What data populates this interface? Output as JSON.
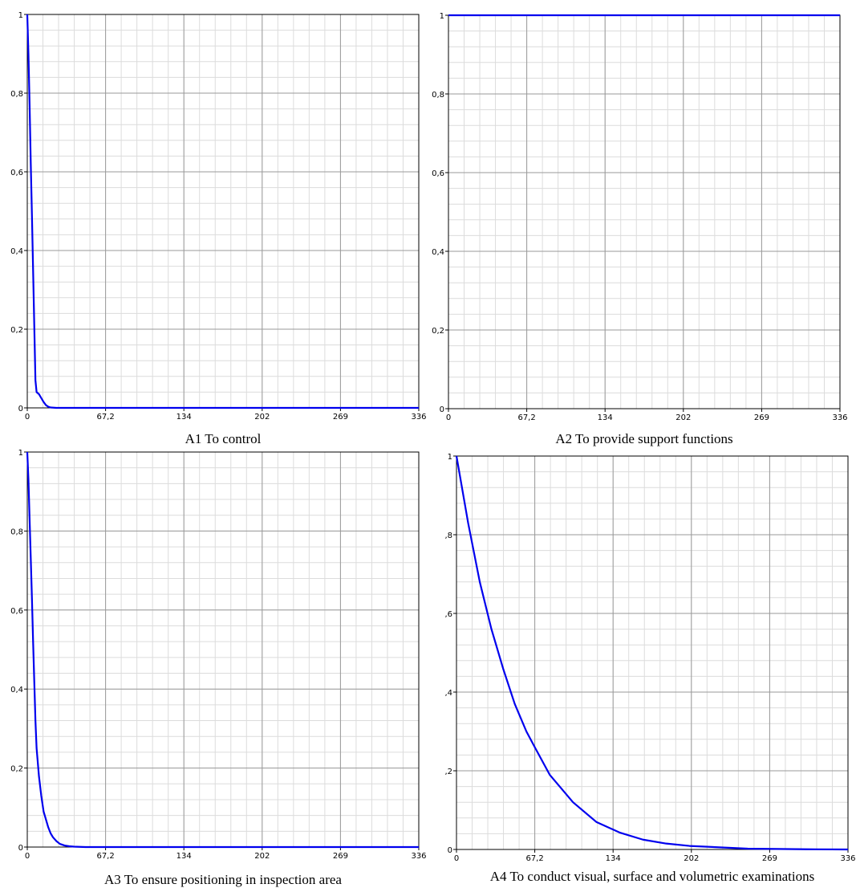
{
  "chart_data": [
    {
      "type": "line",
      "title": "A1 To control",
      "xlim": [
        0,
        336
      ],
      "ylim": [
        0,
        1
      ],
      "xticks": [
        "0",
        "67,2",
        "134",
        "202",
        "269",
        "336"
      ],
      "yticks": [
        "0",
        "0,2",
        "0,4",
        "0,6",
        "0,8",
        "1"
      ],
      "grid": true,
      "series": [
        {
          "color": "#0000ee",
          "x": [
            0,
            1,
            2,
            3,
            4,
            5,
            6,
            7,
            8,
            10,
            12,
            14,
            16,
            18,
            20,
            25,
            336
          ],
          "y": [
            1,
            0.9,
            0.77,
            0.62,
            0.49,
            0.35,
            0.21,
            0.07,
            0.04,
            0.035,
            0.025,
            0.015,
            0.007,
            0.003,
            0.001,
            0,
            0
          ]
        }
      ]
    },
    {
      "type": "line",
      "title": "A2 To provide support functions",
      "xlim": [
        0,
        336
      ],
      "ylim": [
        0,
        1
      ],
      "xticks": [
        "0",
        "67,2",
        "134",
        "202",
        "269",
        "336"
      ],
      "yticks": [
        "0",
        "0,2",
        "0,4",
        "0,6",
        "0,8",
        "1"
      ],
      "grid": true,
      "series": [
        {
          "color": "#0000ee",
          "x": [
            0,
            336
          ],
          "y": [
            1,
            1
          ]
        }
      ]
    },
    {
      "type": "line",
      "title": "A3 To ensure positioning in inspection area",
      "xlim": [
        0,
        336
      ],
      "ylim": [
        0,
        1
      ],
      "xticks": [
        "0",
        "67,2",
        "134",
        "202",
        "269",
        "336"
      ],
      "yticks": [
        "0",
        "0,2",
        "0,4",
        "0,6",
        "0,8",
        "1"
      ],
      "grid": true,
      "series": [
        {
          "color": "#0000ee",
          "x": [
            0,
            1,
            2,
            3,
            4,
            5,
            6,
            7,
            8,
            10,
            12,
            14,
            16,
            18,
            20,
            22,
            25,
            28,
            32,
            36,
            40,
            50,
            336
          ],
          "y": [
            1,
            0.93,
            0.83,
            0.73,
            0.63,
            0.52,
            0.42,
            0.32,
            0.25,
            0.18,
            0.13,
            0.09,
            0.07,
            0.05,
            0.035,
            0.025,
            0.015,
            0.008,
            0.004,
            0.002,
            0.001,
            0,
            0
          ]
        }
      ]
    },
    {
      "type": "line",
      "title": "A4 To conduct visual, surface and volumetric examinations",
      "xlim": [
        0,
        336
      ],
      "ylim": [
        0,
        1
      ],
      "xticks": [
        "0",
        "67,2",
        "134",
        "202",
        "269",
        "336"
      ],
      "yticks": [
        "0",
        ",2",
        ",4",
        ",6",
        ",8",
        "1"
      ],
      "grid": true,
      "series": [
        {
          "color": "#0000ee",
          "x": [
            0,
            10,
            20,
            30,
            40,
            50,
            60,
            67.2,
            80,
            100,
            120,
            140,
            160,
            180,
            200,
            250,
            300,
            336
          ],
          "y": [
            1,
            0.83,
            0.68,
            0.56,
            0.46,
            0.37,
            0.3,
            0.26,
            0.19,
            0.12,
            0.07,
            0.043,
            0.025,
            0.015,
            0.009,
            0.002,
            0.0005,
            0
          ]
        }
      ]
    }
  ]
}
